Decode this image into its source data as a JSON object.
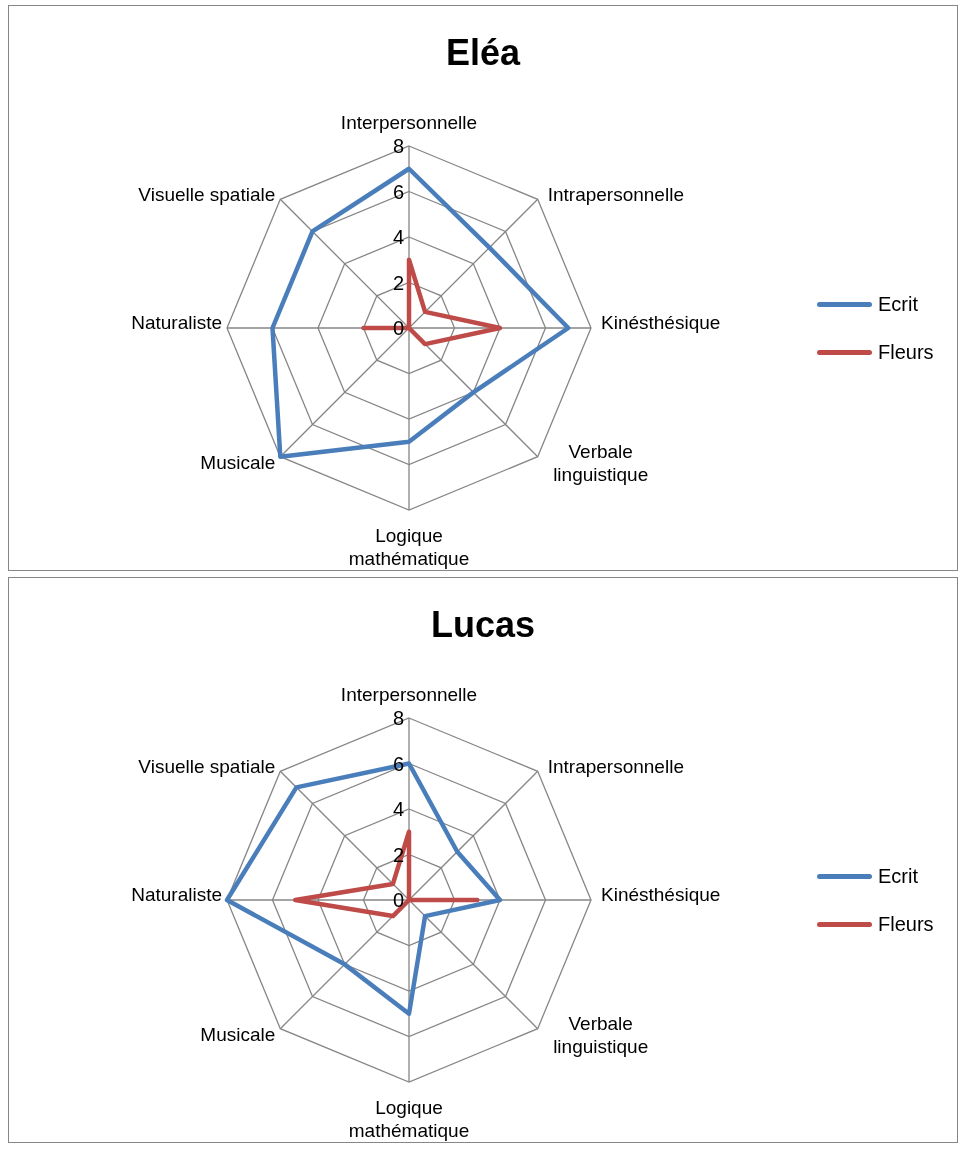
{
  "chart_data": [
    {
      "type": "radar",
      "title": "Eléa",
      "categories": [
        "Interpersonnelle",
        "Intrapersonnelle",
        "Kinésthésique",
        "Verbale linguistique",
        "Logique mathématique",
        "Musicale",
        "Naturaliste",
        "Visuelle spatiale"
      ],
      "series": [
        {
          "name": "Ecrit",
          "color": "#4a7ebb",
          "values": [
            7,
            5,
            7,
            4,
            5,
            8,
            6,
            6
          ]
        },
        {
          "name": "Fleurs",
          "color": "#be4b48",
          "values": [
            3,
            1,
            4,
            1,
            0,
            0,
            2,
            0
          ]
        }
      ],
      "ylim": [
        0,
        8
      ],
      "yticks": [
        0,
        2,
        4,
        6,
        8
      ],
      "grid": true,
      "legend": "right"
    },
    {
      "type": "radar",
      "title": "Lucas",
      "categories": [
        "Interpersonnelle",
        "Intrapersonnelle",
        "Kinésthésique",
        "Verbale linguistique",
        "Logique mathématique",
        "Musicale",
        "Naturaliste",
        "Visuelle spatiale"
      ],
      "series": [
        {
          "name": "Ecrit",
          "color": "#4a7ebb",
          "values": [
            6,
            3,
            4,
            1,
            5,
            4,
            8,
            7
          ]
        },
        {
          "name": "Fleurs",
          "color": "#be4b48",
          "values": [
            3,
            0,
            3,
            0,
            0,
            1,
            5,
            1
          ]
        }
      ],
      "ylim": [
        0,
        8
      ],
      "yticks": [
        0,
        2,
        4,
        6,
        8
      ],
      "grid": true,
      "legend": "right"
    }
  ]
}
